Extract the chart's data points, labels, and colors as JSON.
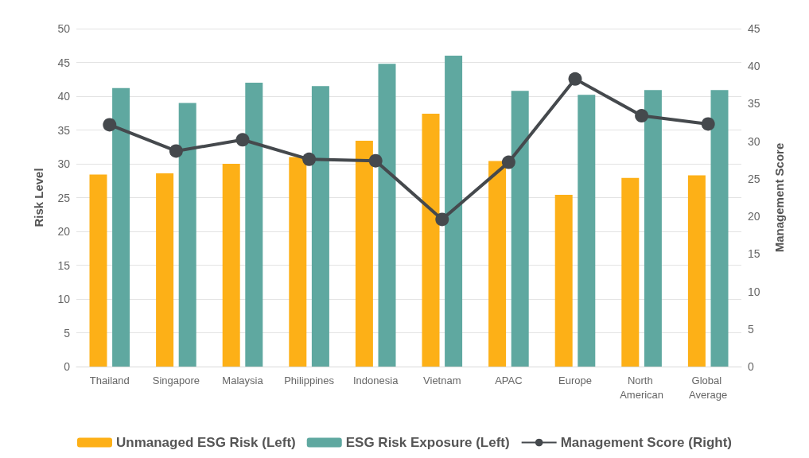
{
  "chart_data": {
    "type": "bar",
    "categories": [
      "Thailand",
      "Singapore",
      "Malaysia",
      "Philippines",
      "Indonesia",
      "Vietnam",
      "APAC",
      "Europe",
      "North American",
      "Global Average"
    ],
    "series": [
      {
        "name": "Unmanaged ESG Risk (Left)",
        "color": "#fdb017",
        "values": [
          28.4,
          28.6,
          30,
          31,
          33.4,
          37.4,
          30.4,
          25.4,
          27.9,
          28.3
        ]
      },
      {
        "name": "ESG Risk Exposure (Left)",
        "color": "#5fa8a0",
        "values": [
          41.2,
          39,
          42,
          41.5,
          44.8,
          46,
          40.8,
          40.2,
          40.9,
          40.9
        ]
      },
      {
        "name": "Management Score (Right)",
        "type": "line",
        "axis": "y2",
        "color": "#45494d",
        "values": [
          32.2,
          28.7,
          30.2,
          27.6,
          27.4,
          19.6,
          27.2,
          38.3,
          33.4,
          32.3
        ]
      }
    ],
    "ylabel": "Risk Level",
    "y2label": "Management Score",
    "ylim": [
      0,
      50
    ],
    "yticks": [
      0,
      5,
      10,
      15,
      20,
      25,
      30,
      35,
      40,
      45,
      50
    ],
    "y2lim": [
      0,
      45
    ],
    "y2ticks": [
      0,
      5,
      10,
      15,
      20,
      25,
      30,
      35,
      40,
      45
    ],
    "grid": "y",
    "legend": "bottom",
    "marker": "circle",
    "line_style": "solid"
  }
}
